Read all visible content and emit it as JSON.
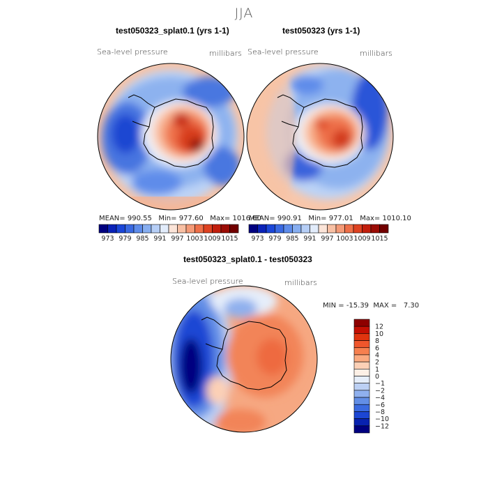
{
  "season": "JJA",
  "chart_data": [
    {
      "type": "heatmap",
      "title": "test050323_splat0.1 (yrs 1-1)",
      "variable": "Sea-level pressure",
      "units": "millibars",
      "stats": {
        "mean_label": "MEAN=",
        "mean": "990.55",
        "min_label": "Min=",
        "min": "977.60",
        "max_label": "Max=",
        "max": "1016.60"
      },
      "colorbar": {
        "levels": [
          973,
          976,
          979,
          982,
          985,
          988,
          991,
          994,
          997,
          1000,
          1003,
          1006,
          1009,
          1012,
          1015
        ],
        "tick_labels": [
          "973",
          "979",
          "985",
          "991",
          "997",
          "1003",
          "1009",
          "1015"
        ],
        "colors": [
          "#00007f",
          "#0a22b8",
          "#1b46d8",
          "#3a69e2",
          "#5e8cea",
          "#87aef0",
          "#b6cef6",
          "#e2ecfb",
          "#fbe4d8",
          "#f8c0a4",
          "#f49a77",
          "#ee6f48",
          "#de4221",
          "#c21e0c",
          "#9b0c05",
          "#720000"
        ]
      }
    },
    {
      "type": "heatmap",
      "title": "test050323 (yrs 1-1)",
      "variable": "Sea-level pressure",
      "units": "millibars",
      "stats": {
        "mean_label": "MEAN=",
        "mean": "990.91",
        "min_label": "Min=",
        "min": "977.01",
        "max_label": "Max=",
        "max": "1010.10"
      },
      "colorbar": {
        "levels": [
          973,
          976,
          979,
          982,
          985,
          988,
          991,
          994,
          997,
          1000,
          1003,
          1006,
          1009,
          1012,
          1015
        ],
        "tick_labels": [
          "973",
          "979",
          "985",
          "991",
          "997",
          "1003",
          "1009",
          "1015"
        ],
        "colors": [
          "#00007f",
          "#0a22b8",
          "#1b46d8",
          "#3a69e2",
          "#5e8cea",
          "#87aef0",
          "#b6cef6",
          "#e2ecfb",
          "#fbe4d8",
          "#f8c0a4",
          "#f49a77",
          "#ee6f48",
          "#de4221",
          "#c21e0c",
          "#9b0c05",
          "#720000"
        ]
      }
    },
    {
      "type": "heatmap",
      "title": "test050323_splat0.1 - test050323",
      "variable": "Sea-level pressure",
      "units": "millibars",
      "stats": {
        "min_label": "MIN =",
        "min": "-15.39",
        "max_label": "MAX =",
        "max": "7.30"
      },
      "colorbar": {
        "levels": [
          -12,
          -10,
          -8,
          -6,
          -4,
          -2,
          -1,
          0,
          1,
          2,
          4,
          6,
          8,
          10,
          12
        ],
        "tick_labels": [
          "12",
          "10",
          "8",
          "6",
          "4",
          "2",
          "1",
          "0",
          "−1",
          "−2",
          "−4",
          "−6",
          "−8",
          "−10",
          "−12"
        ],
        "colors": [
          "#8e0000",
          "#c40f03",
          "#e0340f",
          "#f0562c",
          "#f7804f",
          "#fbaa80",
          "#fcd0b6",
          "#fdf0e6",
          "#e6eefa",
          "#bcd0f4",
          "#8fb0ee",
          "#628ee6",
          "#3a6ae0",
          "#1c46d4",
          "#0822b0",
          "#000080"
        ]
      }
    }
  ]
}
